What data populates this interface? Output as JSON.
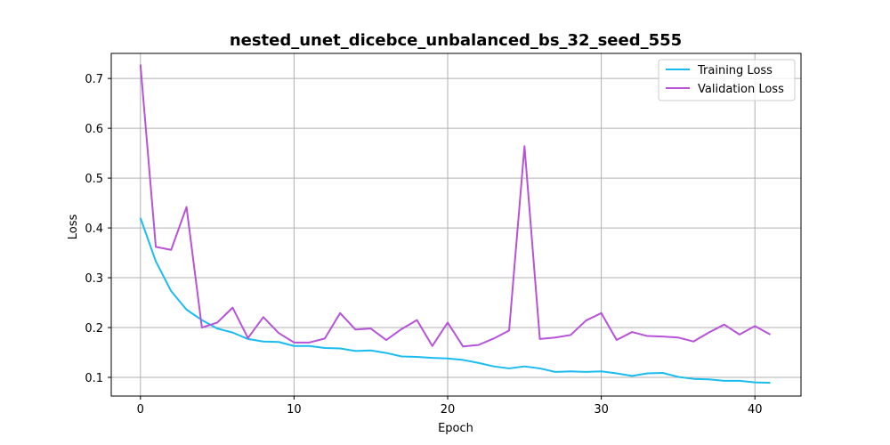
{
  "chart_data": {
    "type": "line",
    "title": "nested_unet_dicebce_unbalanced_bs_32_seed_555",
    "xlabel": "Epoch",
    "ylabel": "Loss",
    "xlim": [
      -1.9,
      43
    ],
    "ylim": [
      0.0625,
      0.7503
    ],
    "xticks": [
      0,
      10,
      20,
      30,
      40
    ],
    "yticks": [
      0.1,
      0.2,
      0.3,
      0.4,
      0.5,
      0.6,
      0.7
    ],
    "grid": true,
    "legend_position": "top-right",
    "x": [
      0,
      1,
      2,
      3,
      4,
      5,
      6,
      7,
      8,
      9,
      10,
      11,
      12,
      13,
      14,
      15,
      16,
      17,
      18,
      19,
      20,
      21,
      22,
      23,
      24,
      25,
      26,
      27,
      28,
      29,
      30,
      31,
      32,
      33,
      34,
      35,
      36,
      37,
      38,
      39,
      40,
      41
    ],
    "series": [
      {
        "name": "Training Loss",
        "color": "#1abcf0",
        "values": [
          0.42,
          0.333,
          0.273,
          0.236,
          0.215,
          0.198,
          0.19,
          0.177,
          0.172,
          0.171,
          0.163,
          0.163,
          0.159,
          0.158,
          0.153,
          0.154,
          0.149,
          0.142,
          0.141,
          0.139,
          0.138,
          0.135,
          0.129,
          0.122,
          0.118,
          0.122,
          0.118,
          0.111,
          0.112,
          0.111,
          0.112,
          0.108,
          0.103,
          0.108,
          0.109,
          0.101,
          0.097,
          0.096,
          0.093,
          0.093,
          0.09,
          0.089
        ]
      },
      {
        "name": "Validation Loss",
        "color": "#b653d9",
        "values": [
          0.728,
          0.362,
          0.356,
          0.442,
          0.2,
          0.21,
          0.24,
          0.179,
          0.221,
          0.189,
          0.17,
          0.17,
          0.178,
          0.229,
          0.196,
          0.198,
          0.175,
          0.197,
          0.215,
          0.163,
          0.21,
          0.162,
          0.165,
          0.178,
          0.194,
          0.564,
          0.177,
          0.18,
          0.185,
          0.214,
          0.229,
          0.175,
          0.191,
          0.183,
          0.182,
          0.18,
          0.172,
          0.19,
          0.206,
          0.186,
          0.203,
          0.186
        ]
      }
    ]
  }
}
